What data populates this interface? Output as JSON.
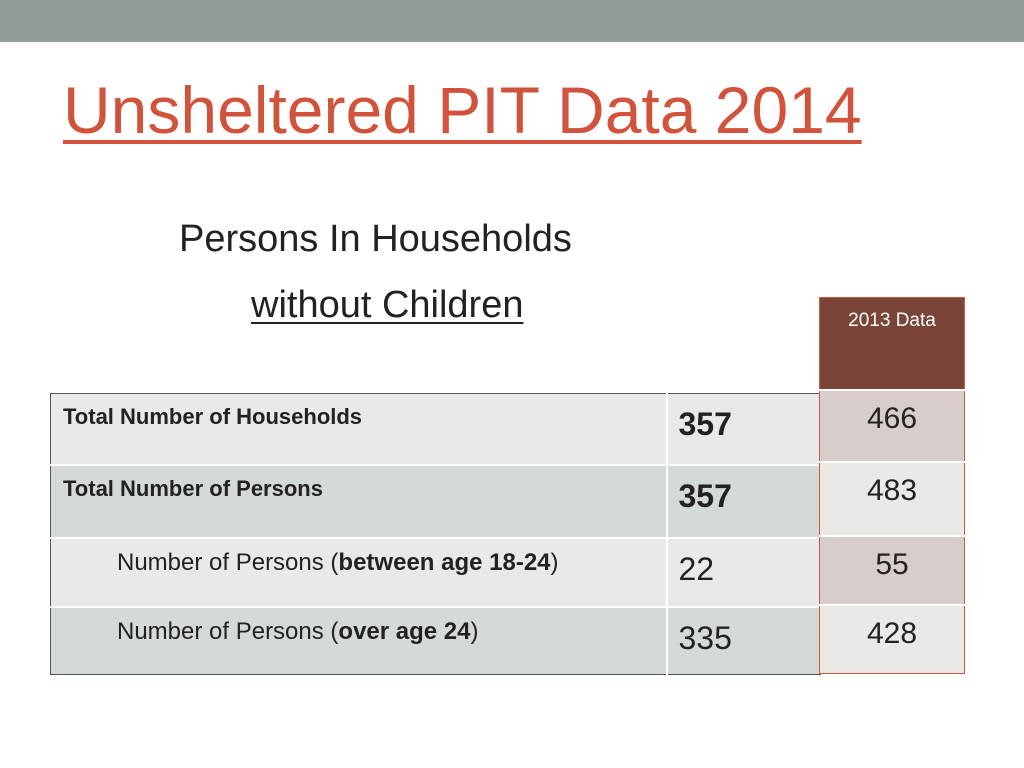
{
  "slide": {
    "title": "Unsheltered PIT Data 2014",
    "subtitle_line1": "Persons In Households",
    "subtitle_line2": "without Children"
  },
  "table": {
    "rows": [
      {
        "label": "Total Number of Households",
        "value_2014": "357",
        "value_2013": "466"
      },
      {
        "label": "Total Number of Persons",
        "value_2014": "357",
        "value_2013": "483"
      },
      {
        "label_prefix": "Number of Persons (",
        "label_bold": "between age 18-24",
        "label_suffix": ")",
        "value_2014": "22",
        "value_2013": "55"
      },
      {
        "label_prefix": "Number of Persons (",
        "label_bold": "over age 24",
        "label_suffix": ")",
        "value_2014": "335",
        "value_2013": "428"
      }
    ]
  },
  "comparison": {
    "header": "2013 Data"
  },
  "colors": {
    "title": "#d1533c",
    "top_band": "#909c95",
    "header_2013_bg": "#7a4536",
    "border_2013": "#c95a3e"
  }
}
